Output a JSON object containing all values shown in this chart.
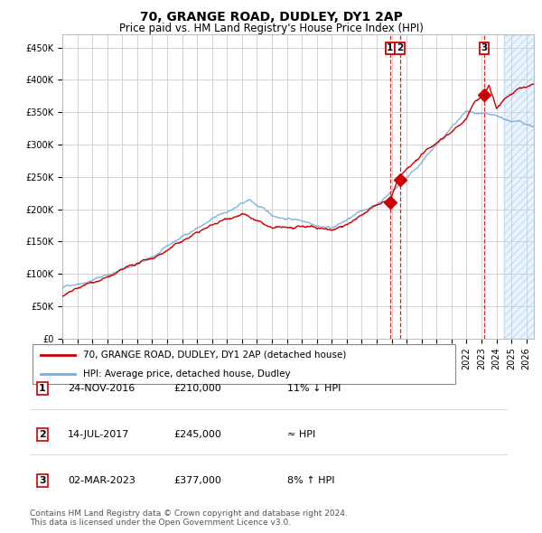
{
  "title": "70, GRANGE ROAD, DUDLEY, DY1 2AP",
  "subtitle": "Price paid vs. HM Land Registry's House Price Index (HPI)",
  "ylim": [
    0,
    470000
  ],
  "yticks": [
    0,
    50000,
    100000,
    150000,
    200000,
    250000,
    300000,
    350000,
    400000,
    450000
  ],
  "ytick_labels": [
    "£0",
    "£50K",
    "£100K",
    "£150K",
    "£200K",
    "£250K",
    "£300K",
    "£350K",
    "£400K",
    "£450K"
  ],
  "hpi_color": "#7aadda",
  "price_color": "#cc0000",
  "marker_color": "#cc0000",
  "vline_color": "#cc0000",
  "bg_color": "#ffffff",
  "grid_color": "#cccccc",
  "legend_label_price": "70, GRANGE ROAD, DUDLEY, DY1 2AP (detached house)",
  "legend_label_hpi": "HPI: Average price, detached house, Dudley",
  "sale1_date": "24-NOV-2016",
  "sale1_price": 210000,
  "sale1_note": "11% ↓ HPI",
  "sale1_x": 2016.9,
  "sale2_date": "14-JUL-2017",
  "sale2_price": 245000,
  "sale2_note": "≈ HPI",
  "sale2_x": 2017.54,
  "sale3_date": "02-MAR-2023",
  "sale3_price": 377000,
  "sale3_note": "8% ↑ HPI",
  "sale3_x": 2023.17,
  "forecast_start_x": 2024.5,
  "xmin": 1995.0,
  "xmax": 2026.5,
  "footer": "Contains HM Land Registry data © Crown copyright and database right 2024.\nThis data is licensed under the Open Government Licence v3.0.",
  "title_fontsize": 10,
  "subtitle_fontsize": 8.5,
  "tick_fontsize": 7,
  "legend_fontsize": 7.5,
  "footer_fontsize": 6.5,
  "table_fontsize": 8
}
